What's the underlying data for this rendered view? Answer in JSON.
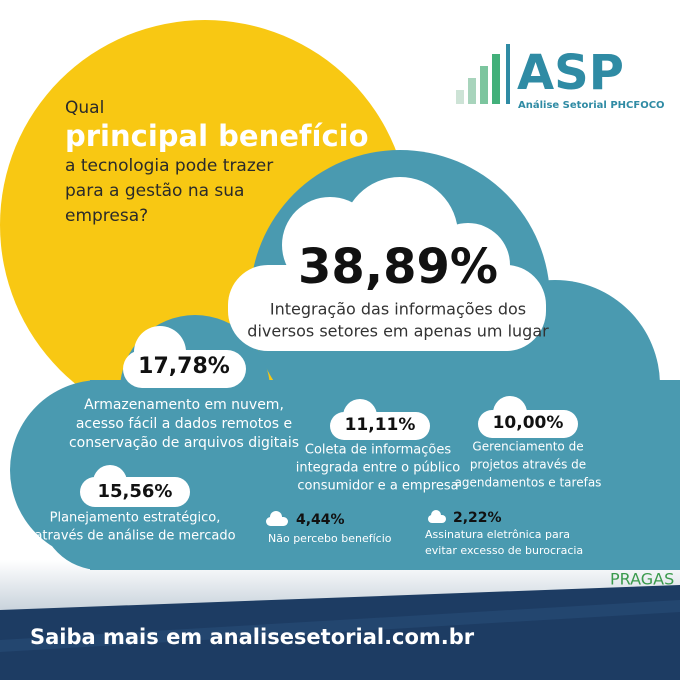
{
  "question": {
    "lines": [
      "Qual",
      "principal benefício",
      "a tecnologia pode trazer",
      "para a gestão na sua",
      "empresa?"
    ]
  },
  "logo": {
    "name": "ASP",
    "subtitle": "Análise Setorial PHCFOCO"
  },
  "results": [
    {
      "value": "38,89%",
      "lines": [
        "Integração das informações dos",
        "diversos setores em apenas um lugar"
      ]
    },
    {
      "value": "17,78%",
      "lines": [
        "Armazenamento em nuvem,",
        "acesso fácil a dados remotos e",
        "conservação de arquivos digitais"
      ]
    },
    {
      "value": "11,11%",
      "lines": [
        "Coleta de informações",
        "integrada entre o público",
        "consumidor e a empresa"
      ]
    },
    {
      "value": "10,00%",
      "lines": [
        "Gerenciamento de",
        "projetos através de",
        "agendamentos e tarefas"
      ]
    },
    {
      "value": "15,56%",
      "lines": [
        "Planejamento estratégico,",
        "através de análise de mercado"
      ]
    },
    {
      "value": "4,44%",
      "lines": [
        "Não percebo benefício"
      ]
    },
    {
      "value": "2,22%",
      "lines": [
        "Assinatura eletrônica para",
        "evitar excesso de burocracia"
      ]
    }
  ],
  "footer": "Saiba mais em analisesetorial.com.br",
  "partner": "PRAGAS"
}
